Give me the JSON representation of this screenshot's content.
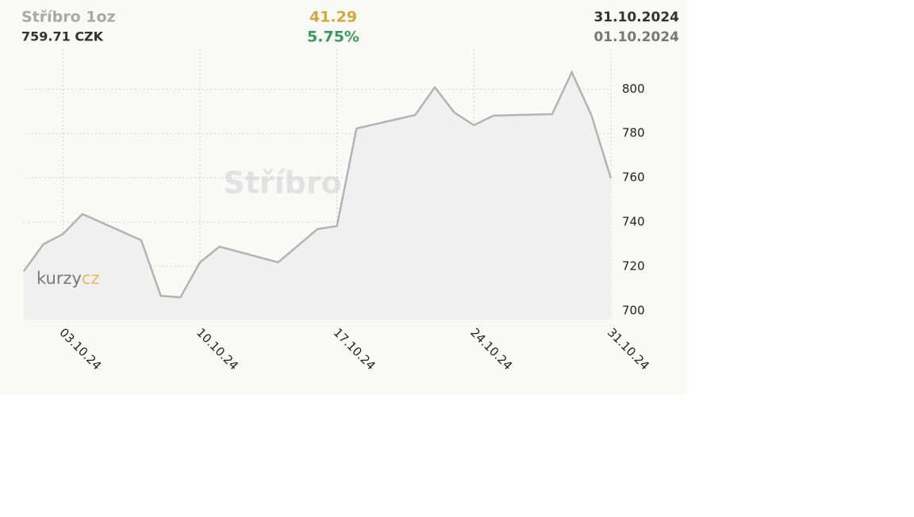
{
  "header": {
    "title": "Stříbro 1oz",
    "price": "759.71 CZK",
    "change": "41.29",
    "change_percent": "5.75%",
    "date_to": "31.10.2024",
    "date_from": "01.10.2024"
  },
  "logo": {
    "part1": "kurzy",
    "part2": "cz"
  },
  "chart_data": {
    "type": "area",
    "title": "Stříbro 1oz",
    "x": [
      "01.10.24",
      "02.10.24",
      "03.10.24",
      "04.10.24",
      "07.10.24",
      "08.10.24",
      "09.10.24",
      "10.10.24",
      "11.10.24",
      "14.10.24",
      "15.10.24",
      "16.10.24",
      "17.10.24",
      "18.10.24",
      "21.10.24",
      "22.10.24",
      "23.10.24",
      "24.10.24",
      "25.10.24",
      "28.10.24",
      "29.10.24",
      "30.10.24",
      "31.10.24"
    ],
    "values": [
      717.8,
      730.0,
      734.6,
      743.6,
      731.8,
      706.7,
      706.0,
      721.8,
      728.9,
      721.8,
      729.3,
      736.8,
      738.2,
      782.2,
      788.3,
      800.8,
      789.4,
      783.7,
      788.0,
      788.7,
      807.6,
      788.3,
      759.71
    ],
    "color": "#b3b3b3",
    "xlim": [
      "01.10.24",
      "31.10.24"
    ],
    "xticks": [
      "03.10.24",
      "10.10.24",
      "17.10.24",
      "24.10.24",
      "31.10.24"
    ],
    "ylim": [
      696,
      818
    ],
    "yticks": [
      700,
      720,
      740,
      760,
      780,
      800
    ],
    "grid": true
  }
}
